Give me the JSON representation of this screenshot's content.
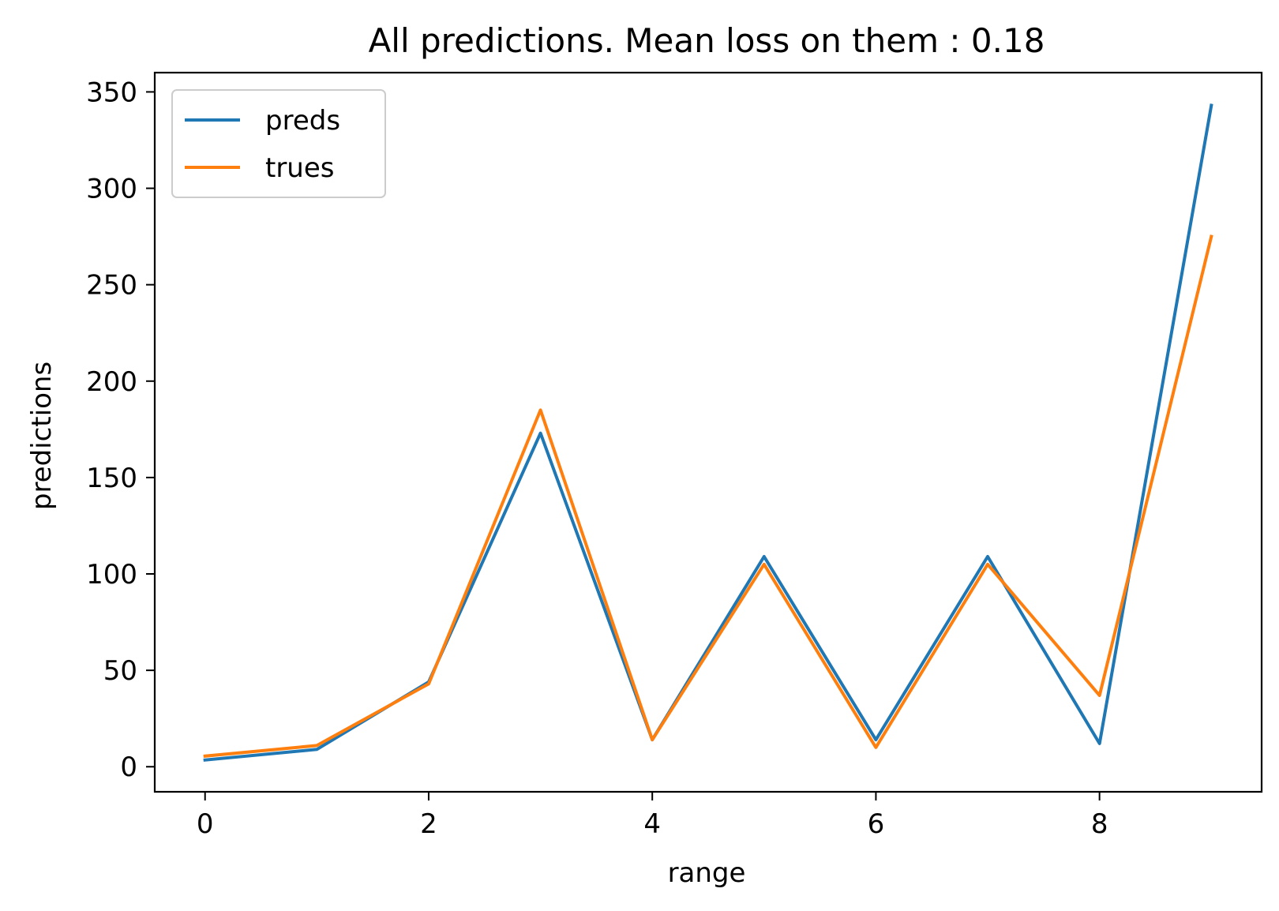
{
  "chart_data": {
    "type": "line",
    "title": "All predictions. Mean loss on them : 0.18",
    "xlabel": "range",
    "ylabel": "predictions",
    "x": [
      0,
      1,
      2,
      3,
      4,
      5,
      6,
      7,
      8,
      9
    ],
    "xlim": [
      -0.45,
      9.45
    ],
    "ylim": [
      -13,
      360
    ],
    "xticks": [
      0,
      2,
      4,
      6,
      8
    ],
    "yticks": [
      0,
      50,
      100,
      150,
      200,
      250,
      300,
      350
    ],
    "grid": false,
    "legend_position": "upper-left",
    "series": [
      {
        "name": "preds",
        "color": "#1f77b4",
        "values": [
          3.5,
          9,
          44,
          173,
          14,
          109,
          14,
          109,
          12,
          343
        ]
      },
      {
        "name": "trues",
        "color": "#ff7f0e",
        "values": [
          5.5,
          11,
          43,
          185,
          14,
          105,
          10,
          105,
          37,
          275
        ]
      }
    ]
  }
}
